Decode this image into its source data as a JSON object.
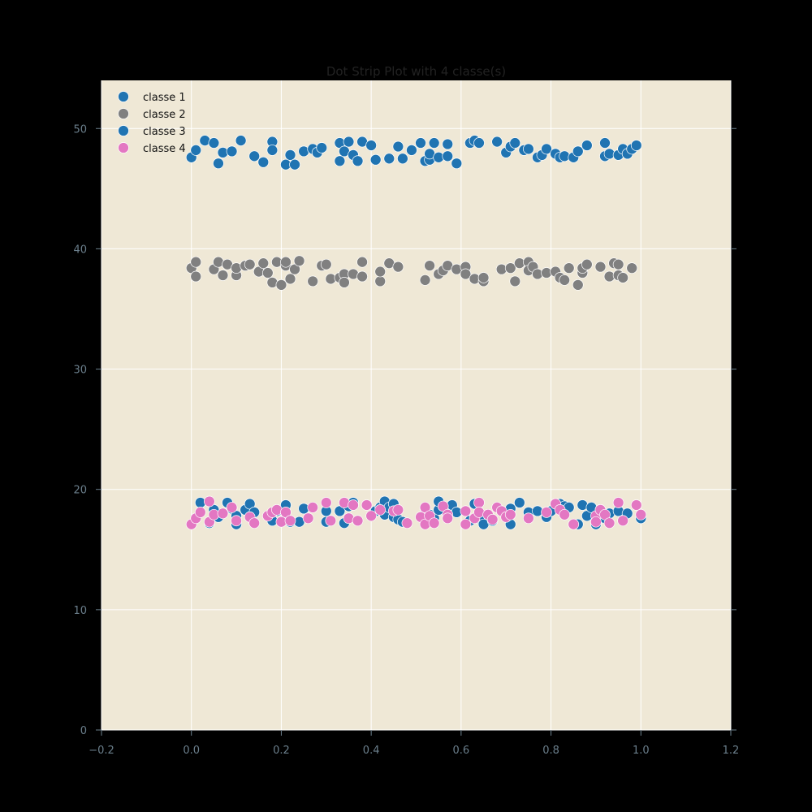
{
  "chart_data": {
    "type": "scatter",
    "title": "Dot Strip Plot with 4 classe(s)",
    "xlabel": "",
    "ylabel": "",
    "xlim": [
      -0.2,
      1.2
    ],
    "ylim": [
      0,
      54
    ],
    "xticks": [
      "−0.2",
      "0.0",
      "0.2",
      "0.4",
      "0.6",
      "0.8",
      "1.0",
      "1.2"
    ],
    "yticks": [
      "0",
      "10",
      "20",
      "30",
      "40",
      "50"
    ],
    "grid": true,
    "legend_position": "top-left",
    "background": "#efe8d6",
    "series": [
      {
        "name": "classe 1",
        "color": "#2074b2",
        "points": [
          [
            0.0,
            47.6
          ],
          [
            0.01,
            48.2
          ],
          [
            0.03,
            49.0
          ],
          [
            0.05,
            48.8
          ],
          [
            0.06,
            47.1
          ],
          [
            0.07,
            48.0
          ],
          [
            0.09,
            48.1
          ],
          [
            0.11,
            49.0
          ],
          [
            0.14,
            47.7
          ],
          [
            0.16,
            47.2
          ],
          [
            0.18,
            48.9
          ],
          [
            0.18,
            48.2
          ],
          [
            0.21,
            47.0
          ],
          [
            0.22,
            47.8
          ],
          [
            0.23,
            47.0
          ],
          [
            0.25,
            48.1
          ],
          [
            0.27,
            48.3
          ],
          [
            0.28,
            48.0
          ],
          [
            0.29,
            48.4
          ],
          [
            0.33,
            48.8
          ],
          [
            0.33,
            47.3
          ],
          [
            0.34,
            48.1
          ],
          [
            0.35,
            48.9
          ],
          [
            0.36,
            47.8
          ],
          [
            0.37,
            47.3
          ],
          [
            0.38,
            48.9
          ],
          [
            0.4,
            48.6
          ],
          [
            0.41,
            47.4
          ],
          [
            0.44,
            47.5
          ],
          [
            0.46,
            48.5
          ],
          [
            0.47,
            47.5
          ],
          [
            0.49,
            48.2
          ],
          [
            0.51,
            48.8
          ],
          [
            0.52,
            47.3
          ],
          [
            0.53,
            47.4
          ],
          [
            0.53,
            47.9
          ],
          [
            0.54,
            48.8
          ],
          [
            0.55,
            47.6
          ],
          [
            0.57,
            47.7
          ],
          [
            0.57,
            48.7
          ],
          [
            0.59,
            47.1
          ],
          [
            0.62,
            48.8
          ],
          [
            0.63,
            49.0
          ],
          [
            0.64,
            48.8
          ],
          [
            0.68,
            48.9
          ],
          [
            0.7,
            48.0
          ],
          [
            0.71,
            48.5
          ],
          [
            0.72,
            48.8
          ],
          [
            0.74,
            48.2
          ],
          [
            0.75,
            48.3
          ],
          [
            0.77,
            47.6
          ],
          [
            0.78,
            47.8
          ],
          [
            0.79,
            48.3
          ],
          [
            0.81,
            47.9
          ],
          [
            0.82,
            47.6
          ],
          [
            0.83,
            47.7
          ],
          [
            0.85,
            47.6
          ],
          [
            0.86,
            48.1
          ],
          [
            0.88,
            48.6
          ],
          [
            0.92,
            47.7
          ],
          [
            0.92,
            48.8
          ],
          [
            0.93,
            47.9
          ],
          [
            0.95,
            47.8
          ],
          [
            0.96,
            48.3
          ],
          [
            0.97,
            47.9
          ],
          [
            0.98,
            48.3
          ],
          [
            0.99,
            48.6
          ]
        ]
      },
      {
        "name": "classe 2",
        "color": "#808080",
        "points": [
          [
            0.0,
            38.4
          ],
          [
            0.01,
            37.7
          ],
          [
            0.01,
            38.9
          ],
          [
            0.05,
            38.3
          ],
          [
            0.06,
            38.9
          ],
          [
            0.07,
            37.8
          ],
          [
            0.08,
            38.7
          ],
          [
            0.1,
            37.8
          ],
          [
            0.1,
            38.4
          ],
          [
            0.12,
            38.6
          ],
          [
            0.13,
            38.7
          ],
          [
            0.15,
            38.1
          ],
          [
            0.16,
            38.8
          ],
          [
            0.17,
            38.0
          ],
          [
            0.18,
            37.2
          ],
          [
            0.19,
            38.9
          ],
          [
            0.2,
            37.0
          ],
          [
            0.21,
            38.6
          ],
          [
            0.21,
            38.9
          ],
          [
            0.22,
            37.5
          ],
          [
            0.23,
            38.3
          ],
          [
            0.24,
            39.0
          ],
          [
            0.27,
            37.3
          ],
          [
            0.29,
            38.6
          ],
          [
            0.3,
            38.7
          ],
          [
            0.31,
            37.5
          ],
          [
            0.33,
            37.6
          ],
          [
            0.34,
            37.9
          ],
          [
            0.34,
            37.2
          ],
          [
            0.36,
            37.9
          ],
          [
            0.38,
            37.7
          ],
          [
            0.38,
            38.9
          ],
          [
            0.42,
            37.3
          ],
          [
            0.42,
            38.1
          ],
          [
            0.44,
            38.8
          ],
          [
            0.46,
            38.5
          ],
          [
            0.52,
            37.4
          ],
          [
            0.53,
            38.6
          ],
          [
            0.55,
            37.9
          ],
          [
            0.56,
            38.2
          ],
          [
            0.57,
            38.6
          ],
          [
            0.59,
            38.3
          ],
          [
            0.61,
            38.5
          ],
          [
            0.61,
            37.9
          ],
          [
            0.63,
            37.5
          ],
          [
            0.65,
            37.3
          ],
          [
            0.65,
            37.6
          ],
          [
            0.69,
            38.3
          ],
          [
            0.71,
            38.4
          ],
          [
            0.72,
            37.3
          ],
          [
            0.73,
            38.8
          ],
          [
            0.75,
            38.9
          ],
          [
            0.75,
            38.2
          ],
          [
            0.76,
            38.5
          ],
          [
            0.77,
            37.9
          ],
          [
            0.79,
            38.0
          ],
          [
            0.81,
            38.1
          ],
          [
            0.82,
            37.6
          ],
          [
            0.83,
            37.4
          ],
          [
            0.84,
            38.4
          ],
          [
            0.86,
            37.0
          ],
          [
            0.87,
            38.0
          ],
          [
            0.87,
            38.4
          ],
          [
            0.88,
            38.7
          ],
          [
            0.91,
            38.5
          ],
          [
            0.93,
            37.7
          ],
          [
            0.94,
            38.8
          ],
          [
            0.95,
            37.8
          ],
          [
            0.95,
            38.7
          ],
          [
            0.96,
            37.6
          ],
          [
            0.98,
            38.4
          ]
        ]
      },
      {
        "name": "classe 3",
        "color": "#2074b2",
        "points": [
          [
            0.02,
            18.9
          ],
          [
            0.04,
            17.2
          ],
          [
            0.05,
            18.3
          ],
          [
            0.06,
            17.7
          ],
          [
            0.08,
            18.9
          ],
          [
            0.09,
            18.4
          ],
          [
            0.1,
            17.1
          ],
          [
            0.1,
            17.8
          ],
          [
            0.12,
            18.3
          ],
          [
            0.13,
            18.8
          ],
          [
            0.14,
            18.1
          ],
          [
            0.18,
            17.4
          ],
          [
            0.19,
            18.2
          ],
          [
            0.21,
            18.7
          ],
          [
            0.21,
            17.5
          ],
          [
            0.22,
            17.3
          ],
          [
            0.24,
            17.3
          ],
          [
            0.25,
            18.4
          ],
          [
            0.3,
            17.3
          ],
          [
            0.3,
            18.2
          ],
          [
            0.33,
            18.2
          ],
          [
            0.34,
            17.2
          ],
          [
            0.35,
            18.6
          ],
          [
            0.36,
            18.9
          ],
          [
            0.41,
            18.2
          ],
          [
            0.42,
            18.5
          ],
          [
            0.43,
            19.0
          ],
          [
            0.43,
            17.9
          ],
          [
            0.44,
            18.5
          ],
          [
            0.45,
            18.8
          ],
          [
            0.45,
            17.7
          ],
          [
            0.46,
            17.5
          ],
          [
            0.47,
            17.3
          ],
          [
            0.52,
            18.4
          ],
          [
            0.53,
            17.9
          ],
          [
            0.54,
            17.6
          ],
          [
            0.55,
            18.3
          ],
          [
            0.55,
            19.0
          ],
          [
            0.57,
            17.8
          ],
          [
            0.58,
            18.7
          ],
          [
            0.59,
            18.1
          ],
          [
            0.62,
            17.4
          ],
          [
            0.63,
            18.8
          ],
          [
            0.64,
            17.6
          ],
          [
            0.65,
            17.1
          ],
          [
            0.67,
            17.4
          ],
          [
            0.7,
            17.8
          ],
          [
            0.71,
            18.4
          ],
          [
            0.71,
            17.1
          ],
          [
            0.73,
            18.9
          ],
          [
            0.75,
            18.1
          ],
          [
            0.77,
            18.2
          ],
          [
            0.79,
            17.7
          ],
          [
            0.8,
            18.2
          ],
          [
            0.82,
            18.8
          ],
          [
            0.83,
            18.6
          ],
          [
            0.84,
            18.5
          ],
          [
            0.85,
            17.1
          ],
          [
            0.86,
            17.1
          ],
          [
            0.87,
            18.7
          ],
          [
            0.88,
            17.8
          ],
          [
            0.89,
            18.5
          ],
          [
            0.9,
            17.1
          ],
          [
            0.91,
            18.3
          ],
          [
            0.92,
            17.6
          ],
          [
            0.93,
            18.0
          ],
          [
            0.95,
            18.2
          ],
          [
            0.97,
            18.0
          ],
          [
            1.0,
            17.6
          ]
        ]
      },
      {
        "name": "classe 4",
        "color": "#e377c2",
        "points": [
          [
            0.0,
            17.1
          ],
          [
            0.01,
            17.6
          ],
          [
            0.02,
            18.1
          ],
          [
            0.04,
            17.3
          ],
          [
            0.04,
            19.0
          ],
          [
            0.05,
            17.9
          ],
          [
            0.07,
            18.0
          ],
          [
            0.09,
            18.5
          ],
          [
            0.1,
            17.4
          ],
          [
            0.13,
            17.7
          ],
          [
            0.14,
            17.2
          ],
          [
            0.17,
            17.8
          ],
          [
            0.18,
            18.1
          ],
          [
            0.19,
            18.3
          ],
          [
            0.2,
            17.3
          ],
          [
            0.21,
            18.1
          ],
          [
            0.22,
            17.4
          ],
          [
            0.26,
            17.6
          ],
          [
            0.27,
            18.5
          ],
          [
            0.3,
            18.9
          ],
          [
            0.31,
            17.4
          ],
          [
            0.34,
            18.9
          ],
          [
            0.35,
            17.6
          ],
          [
            0.36,
            18.7
          ],
          [
            0.37,
            17.4
          ],
          [
            0.39,
            18.7
          ],
          [
            0.4,
            17.8
          ],
          [
            0.42,
            18.3
          ],
          [
            0.45,
            18.2
          ],
          [
            0.46,
            18.3
          ],
          [
            0.48,
            17.2
          ],
          [
            0.51,
            17.7
          ],
          [
            0.52,
            18.5
          ],
          [
            0.52,
            17.1
          ],
          [
            0.53,
            17.8
          ],
          [
            0.54,
            17.2
          ],
          [
            0.56,
            18.6
          ],
          [
            0.57,
            17.9
          ],
          [
            0.57,
            17.6
          ],
          [
            0.61,
            17.1
          ],
          [
            0.61,
            18.2
          ],
          [
            0.63,
            17.6
          ],
          [
            0.64,
            18.9
          ],
          [
            0.64,
            18.1
          ],
          [
            0.66,
            17.9
          ],
          [
            0.67,
            17.5
          ],
          [
            0.68,
            18.5
          ],
          [
            0.69,
            18.2
          ],
          [
            0.7,
            17.7
          ],
          [
            0.71,
            17.9
          ],
          [
            0.75,
            17.6
          ],
          [
            0.79,
            18.1
          ],
          [
            0.81,
            18.8
          ],
          [
            0.82,
            18.3
          ],
          [
            0.83,
            17.9
          ],
          [
            0.85,
            17.1
          ],
          [
            0.9,
            17.8
          ],
          [
            0.9,
            17.3
          ],
          [
            0.91,
            18.3
          ],
          [
            0.92,
            17.9
          ],
          [
            0.93,
            17.2
          ],
          [
            0.95,
            18.9
          ],
          [
            0.96,
            17.4
          ],
          [
            0.99,
            18.7
          ],
          [
            1.0,
            17.9
          ]
        ]
      }
    ]
  }
}
